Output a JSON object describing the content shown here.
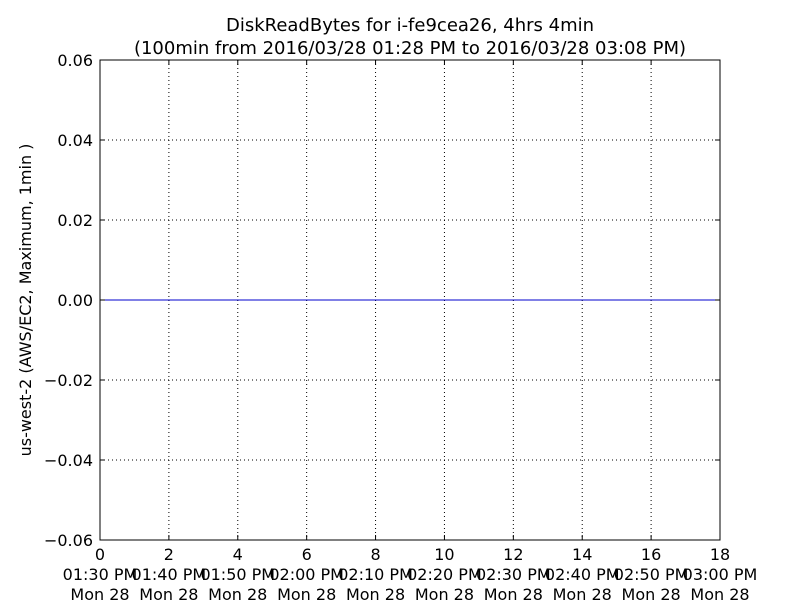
{
  "chart_data": {
    "type": "line",
    "title_line1": "DiskReadBytes for i-fe9cea26, 4hrs 4min",
    "title_line2": "(100min from 2016/03/28 01:28 PM to 2016/03/28 03:08 PM)",
    "xlabel": "",
    "ylabel": "us-west-2 (AWS/EC2, Maximum, 1min )",
    "xlim": [
      0,
      18
    ],
    "ylim": [
      -0.06,
      0.06
    ],
    "grid": true,
    "x_ticks": [
      {
        "value": 0,
        "num": "0",
        "time": "01:30 PM",
        "day": "Mon 28"
      },
      {
        "value": 2,
        "num": "2",
        "time": "01:40 PM",
        "day": "Mon 28"
      },
      {
        "value": 4,
        "num": "4",
        "time": "01:50 PM",
        "day": "Mon 28"
      },
      {
        "value": 6,
        "num": "6",
        "time": "02:00 PM",
        "day": "Mon 28"
      },
      {
        "value": 8,
        "num": "8",
        "time": "02:10 PM",
        "day": "Mon 28"
      },
      {
        "value": 10,
        "num": "10",
        "time": "02:20 PM",
        "day": "Mon 28"
      },
      {
        "value": 12,
        "num": "12",
        "time": "02:30 PM",
        "day": "Mon 28"
      },
      {
        "value": 14,
        "num": "14",
        "time": "02:40 PM",
        "day": "Mon 28"
      },
      {
        "value": 16,
        "num": "16",
        "time": "02:50 PM",
        "day": "Mon 28"
      },
      {
        "value": 18,
        "num": "18",
        "time": "03:00 PM",
        "day": "Mon 28"
      }
    ],
    "y_ticks": [
      {
        "value": 0.06,
        "label": "0.06"
      },
      {
        "value": 0.04,
        "label": "0.04"
      },
      {
        "value": 0.02,
        "label": "0.02"
      },
      {
        "value": 0.0,
        "label": "0.00"
      },
      {
        "value": -0.02,
        "label": "−0.02"
      },
      {
        "value": -0.04,
        "label": "−0.04"
      },
      {
        "value": -0.06,
        "label": "−0.06"
      }
    ],
    "series": [
      {
        "color": "#0000cc",
        "x": [
          0,
          18
        ],
        "y": [
          0,
          0
        ]
      }
    ]
  }
}
